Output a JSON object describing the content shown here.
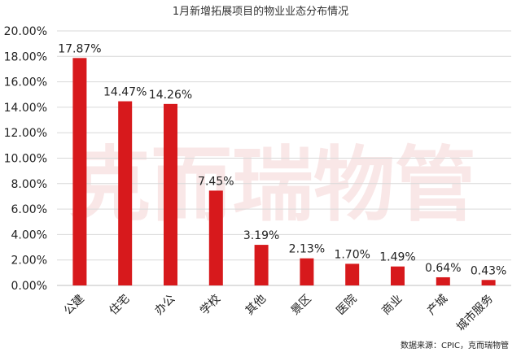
{
  "chart_data": {
    "type": "bar",
    "title": "1月新增拓展项目的物业业态分布情况",
    "categories": [
      "公建",
      "住宅",
      "办公",
      "学校",
      "其他",
      "景区",
      "医院",
      "商业",
      "产城",
      "城市服务"
    ],
    "values": [
      17.87,
      14.47,
      14.26,
      7.45,
      3.19,
      2.13,
      1.7,
      1.49,
      0.64,
      0.43
    ],
    "value_labels": [
      "17.87%",
      "14.47%",
      "14.26%",
      "7.45%",
      "3.19%",
      "2.13%",
      "1.70%",
      "1.49%",
      "0.64%",
      "0.43%"
    ],
    "ylim": [
      0,
      20
    ],
    "ytick_labels": [
      "0.00%",
      "2.00%",
      "4.00%",
      "6.00%",
      "8.00%",
      "10.00%",
      "12.00%",
      "14.00%",
      "16.00%",
      "18.00%",
      "20.00%"
    ],
    "grid": true,
    "bar_color": "#d7191c",
    "source": "数据来源：CPIC，克而瑞物管",
    "watermark": "克而瑞物管"
  }
}
